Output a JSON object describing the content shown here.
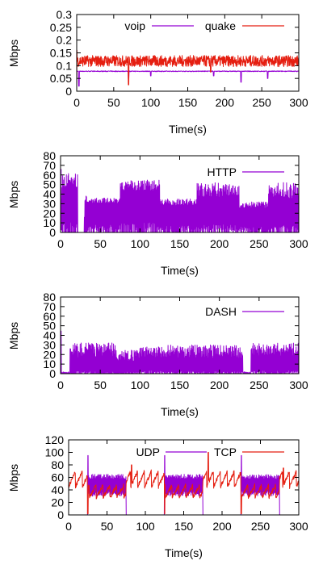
{
  "colors": {
    "purple": "#9400d3",
    "red": "#e51e10",
    "axis": "#000000"
  },
  "chart_data": [
    {
      "id": "voip_quake",
      "type": "line",
      "xlabel": "Time(s)",
      "ylabel": "Mbps",
      "xlim": [
        0,
        300
      ],
      "ylim": [
        0,
        0.3
      ],
      "xticks": [
        0,
        50,
        100,
        150,
        200,
        250,
        300
      ],
      "xtick_labels": [
        "0",
        "50",
        "100",
        "150",
        "200",
        "250",
        "300"
      ],
      "yticks": [
        0,
        0.05,
        0.1,
        0.15,
        0.2,
        0.25,
        0.3
      ],
      "ytick_labels": [
        "0",
        "0.05",
        "0.1",
        "0.15",
        "0.2",
        "0.25",
        "0.3"
      ],
      "legend_position": "top-center",
      "grid": false,
      "series": [
        {
          "name": "voip",
          "color": "#9400d3",
          "style": "flat-with-dips",
          "base": 0.078,
          "noise": 0.003,
          "dips": [
            [
              3,
              0.02
            ],
            [
              70,
              0.05
            ],
            [
              100,
              0.06
            ],
            [
              185,
              0.06
            ],
            [
              258,
              0.05
            ],
            [
              222,
              0.035
            ]
          ]
        },
        {
          "name": "quake",
          "color": "#e51e10",
          "style": "noisy",
          "base": 0.118,
          "noise": 0.022,
          "start_spike": [
            0,
            0.02,
            0.16
          ],
          "dips": [
            [
              70,
              0.025
            ],
            [
              181,
              0.075
            ]
          ]
        }
      ]
    },
    {
      "id": "http",
      "type": "line",
      "xlabel": "Time(s)",
      "ylabel": "Mbps",
      "xlim": [
        0,
        300
      ],
      "ylim": [
        0,
        80
      ],
      "xticks": [
        0,
        50,
        100,
        150,
        200,
        250,
        300
      ],
      "xtick_labels": [
        "0",
        "50",
        "100",
        "150",
        "200",
        "250",
        "300"
      ],
      "yticks": [
        0,
        10,
        20,
        30,
        40,
        50,
        60,
        70,
        80
      ],
      "ytick_labels": [
        "0",
        "10",
        "20",
        "30",
        "40",
        "50",
        "60",
        "70",
        "80"
      ],
      "legend_position": "top-right",
      "grid": false,
      "series": [
        {
          "name": "HTTP",
          "color": "#9400d3",
          "style": "spiky",
          "segments": [
            [
              0,
              2,
              20,
              68
            ],
            [
              2,
              22,
              38,
              62
            ],
            [
              22,
              30,
              0,
              0
            ],
            [
              30,
              33,
              0,
              40
            ],
            [
              33,
              75,
              28,
              36
            ],
            [
              75,
              125,
              38,
              55
            ],
            [
              125,
              172,
              25,
              35
            ],
            [
              172,
              200,
              30,
              52
            ],
            [
              200,
              225,
              32,
              50
            ],
            [
              225,
              262,
              22,
              32
            ],
            [
              262,
              300,
              28,
              52
            ]
          ]
        }
      ]
    },
    {
      "id": "dash",
      "type": "line",
      "xlabel": "Time(s)",
      "ylabel": "Mbps",
      "xlim": [
        0,
        300
      ],
      "ylim": [
        0,
        80
      ],
      "xticks": [
        0,
        50,
        100,
        150,
        200,
        250,
        300
      ],
      "xtick_labels": [
        "0",
        "50",
        "100",
        "150",
        "200",
        "250",
        "300"
      ],
      "yticks": [
        0,
        10,
        20,
        30,
        40,
        50,
        60,
        70,
        80
      ],
      "ytick_labels": [
        "0",
        "10",
        "20",
        "30",
        "40",
        "50",
        "60",
        "70",
        "80"
      ],
      "legend_position": "top-right",
      "grid": false,
      "series": [
        {
          "name": "DASH",
          "color": "#9400d3",
          "style": "spiky",
          "segments": [
            [
              0,
              1,
              40,
              50
            ],
            [
              1,
              12,
              0,
              2
            ],
            [
              12,
              70,
              10,
              32
            ],
            [
              70,
              100,
              8,
              25
            ],
            [
              100,
              135,
              12,
              28
            ],
            [
              135,
              230,
              10,
              30
            ],
            [
              230,
              240,
              0,
              2
            ],
            [
              240,
              300,
              12,
              32
            ]
          ]
        }
      ]
    },
    {
      "id": "udp_tcp",
      "type": "line",
      "xlabel": "Time(s)",
      "ylabel": "Mbps",
      "xlim": [
        0,
        300
      ],
      "ylim": [
        0,
        120
      ],
      "xticks": [
        0,
        50,
        100,
        150,
        200,
        250,
        300
      ],
      "xtick_labels": [
        "0",
        "50",
        "100",
        "150",
        "200",
        "250",
        "300"
      ],
      "yticks": [
        0,
        20,
        40,
        60,
        80,
        100,
        120
      ],
      "ytick_labels": [
        "0",
        "20",
        "40",
        "60",
        "80",
        "100",
        "120"
      ],
      "legend_position": "top-center",
      "grid": false,
      "series": [
        {
          "name": "UDP",
          "color": "#9400d3",
          "style": "bursts",
          "bursts": [
            [
              25,
              75
            ],
            [
              125,
              175
            ],
            [
              225,
              275
            ]
          ],
          "low": 30,
          "high": 65,
          "spike": 95
        },
        {
          "name": "TCP",
          "color": "#e51e10",
          "style": "sawtooth",
          "outside": [
            45,
            70
          ],
          "inside": [
            28,
            48
          ],
          "bursts": [
            [
              25,
              75
            ],
            [
              125,
              175
            ],
            [
              225,
              275
            ]
          ],
          "spikes": [
            [
              82,
              80
            ],
            [
              182,
              100
            ],
            [
              280,
              75
            ]
          ]
        }
      ]
    }
  ]
}
